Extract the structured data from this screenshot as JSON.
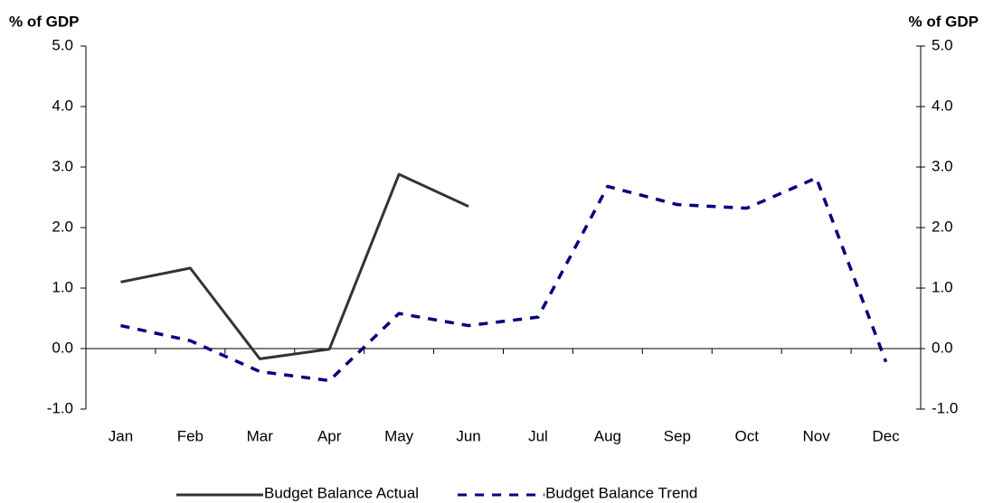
{
  "chart_data": {
    "type": "line",
    "ylabel": "% of GDP",
    "y2label": "% of GDP",
    "categories": [
      "Jan",
      "Feb",
      "Mar",
      "Apr",
      "May",
      "Jun",
      "Jul",
      "Aug",
      "Sep",
      "Oct",
      "Nov",
      "Dec"
    ],
    "series": [
      {
        "name": "Budget Balance Actual",
        "color": "#333333",
        "dash": false,
        "values": [
          1.1,
          1.33,
          -0.17,
          -0.01,
          2.88,
          2.35,
          null,
          null,
          null,
          null,
          null,
          null
        ]
      },
      {
        "name": "Budget Balance Trend",
        "color": "#000080",
        "dash": true,
        "values": [
          0.38,
          0.13,
          -0.38,
          -0.53,
          0.58,
          0.38,
          0.52,
          2.68,
          2.38,
          2.32,
          2.82,
          -0.22
        ]
      }
    ],
    "ylim": [
      -1,
      5
    ],
    "yticks": [
      {
        "value": -1,
        "label": "-1.0"
      },
      {
        "value": 0,
        "label": "0.0"
      },
      {
        "value": 1,
        "label": "1.0"
      },
      {
        "value": 2,
        "label": "2.0"
      },
      {
        "value": 3,
        "label": "3.0"
      },
      {
        "value": 4,
        "label": "4.0"
      },
      {
        "value": 5,
        "label": "5.0"
      }
    ],
    "y2lim": [
      -1,
      5
    ],
    "y2ticks": [
      {
        "value": -1,
        "label": "-1.0"
      },
      {
        "value": 0,
        "label": "0.0"
      },
      {
        "value": 1,
        "label": "1.0"
      },
      {
        "value": 2,
        "label": "2.0"
      },
      {
        "value": 3,
        "label": "3.0"
      },
      {
        "value": 4,
        "label": "4.0"
      },
      {
        "value": 5,
        "label": "5.0"
      }
    ],
    "grid": false
  }
}
